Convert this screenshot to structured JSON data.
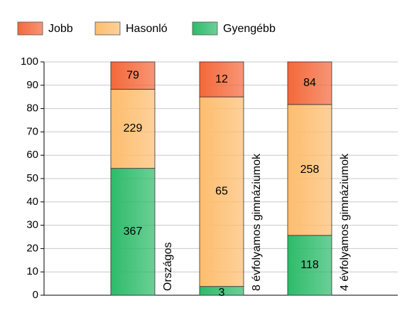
{
  "chart_data": {
    "type": "bar",
    "stack": "percent",
    "categories": [
      "Országos",
      "8 évfolyamos gimnáziumok",
      "4 évfolyamos gimnáziumok"
    ],
    "series": [
      {
        "name": "Jobb",
        "color": "#f4683a",
        "values": [
          79,
          12,
          84
        ]
      },
      {
        "name": "Hasonló",
        "color": "#fdbd6e",
        "values": [
          229,
          65,
          258
        ]
      },
      {
        "name": "Gyengébb",
        "color": "#2dbb6a",
        "values": [
          367,
          3,
          118
        ]
      }
    ],
    "ylim": [
      0,
      100
    ],
    "yticks": [
      0,
      10,
      20,
      30,
      40,
      50,
      60,
      70,
      80,
      90,
      100
    ],
    "grid": true
  }
}
